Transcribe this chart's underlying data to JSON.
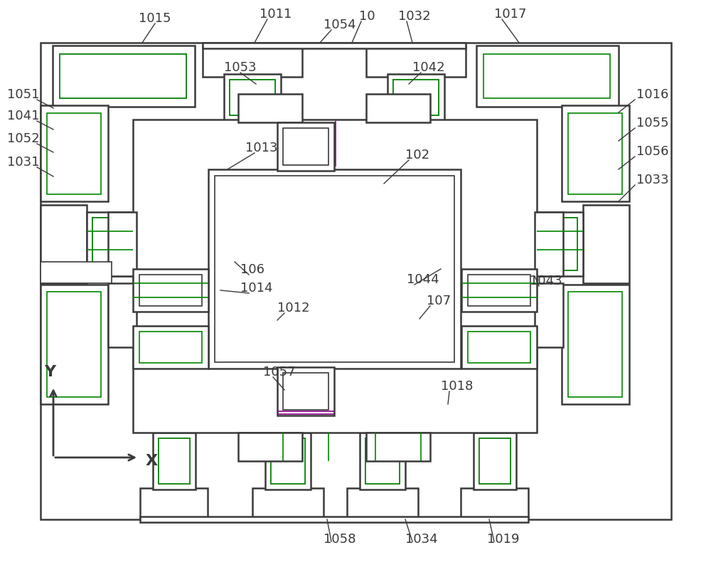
{
  "bg_color": "#ffffff",
  "lc": "#3a3a3a",
  "gc": "#008800",
  "pc": "#880088",
  "lw1": 1.8,
  "lw2": 1.2
}
